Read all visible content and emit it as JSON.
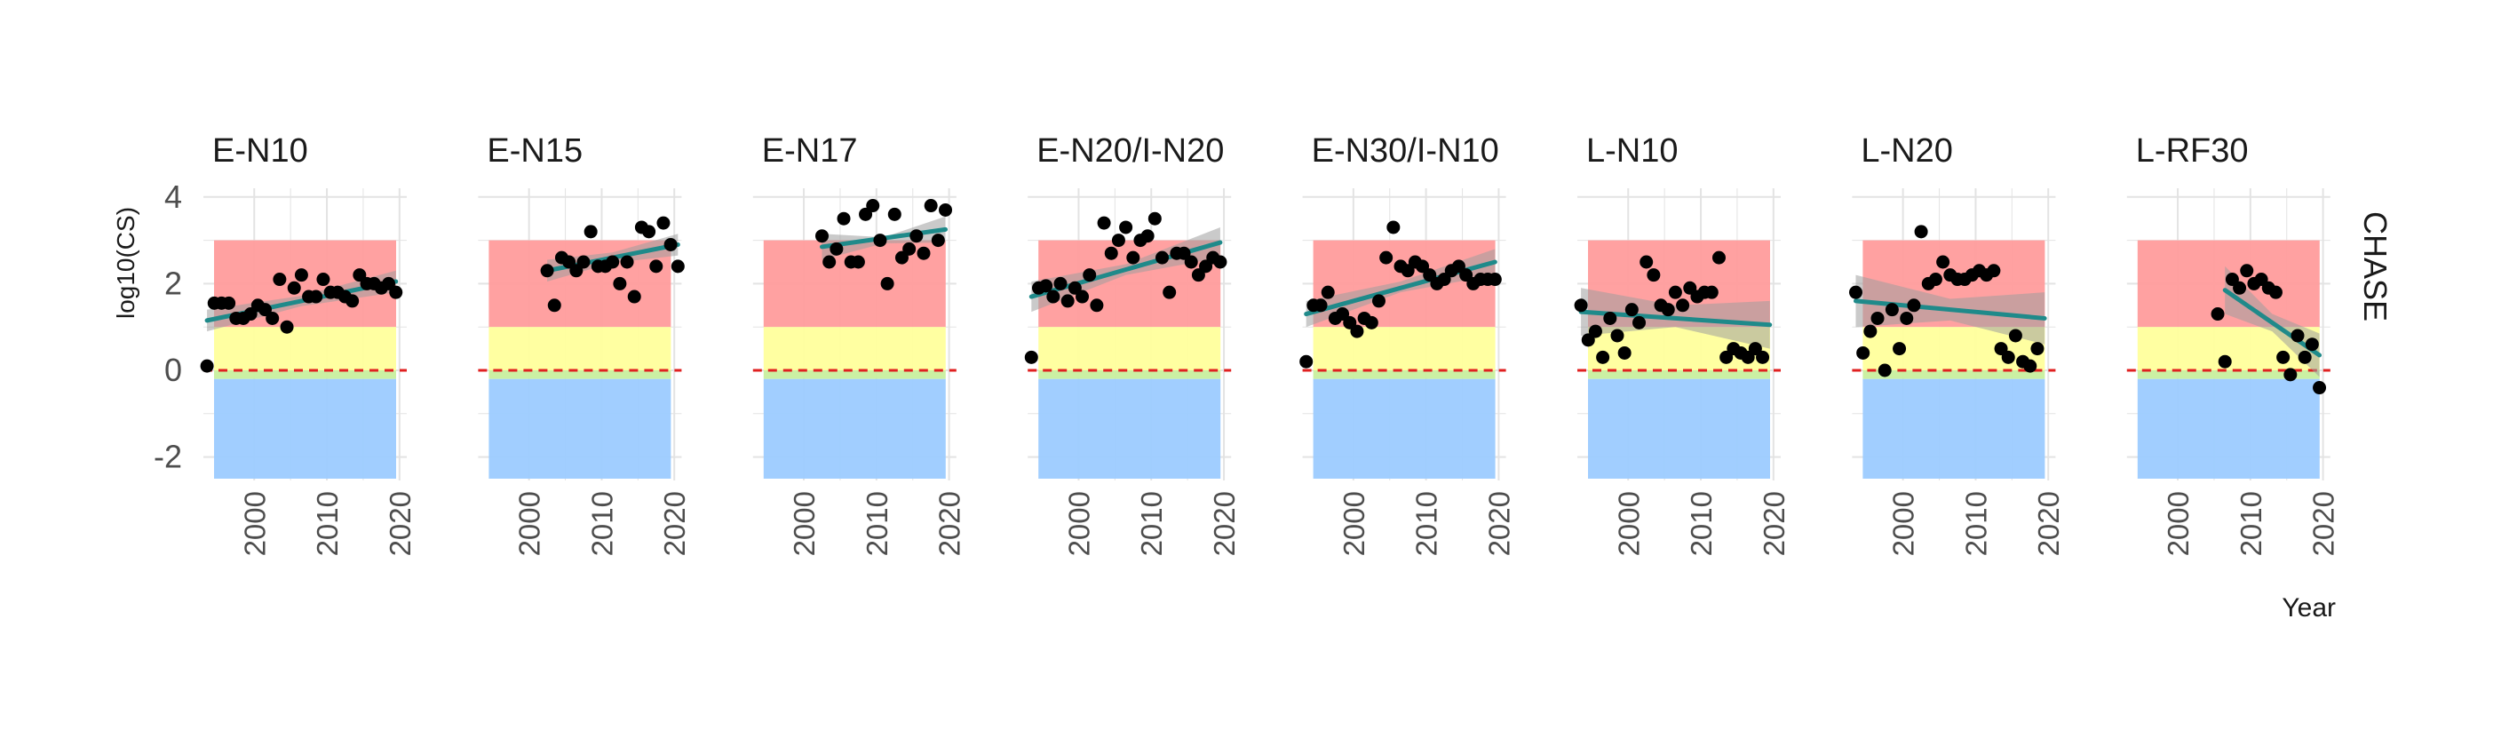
{
  "chart_data": {
    "type": "scatter",
    "facet_label": "CHASE",
    "xlabel": "Year",
    "ylabel": "log10(CS)",
    "xlim": [
      1993,
      2021
    ],
    "ylim": [
      -2.6,
      4.2
    ],
    "x_ticks": [
      "2000",
      "2010",
      "2020"
    ],
    "y_ticks": [
      "-2",
      "0",
      "2",
      "4"
    ],
    "reference_line": 0,
    "background_bands": [
      {
        "from": 1,
        "to": 3,
        "color": "#ff9c9c"
      },
      {
        "from": 0,
        "to": 1,
        "color": "#ffff9c"
      },
      {
        "from": -0.2,
        "to": 0,
        "color": "#c8ef9e"
      },
      {
        "from": -2.5,
        "to": -0.2,
        "color": "#9ccbff"
      }
    ],
    "colors": {
      "points": "#000000",
      "trend": "#1f8a8a",
      "ribbon": "#9e9e9e",
      "reference": "#e02020",
      "grid": "#e3e3e3"
    },
    "panels": [
      {
        "title": "E-N10",
        "points": [
          [
            1993.5,
            0.1
          ],
          [
            1994.5,
            1.55
          ],
          [
            1995.5,
            1.55
          ],
          [
            1996.5,
            1.55
          ],
          [
            1997.5,
            1.2
          ],
          [
            1998.5,
            1.2
          ],
          [
            1999.5,
            1.3
          ],
          [
            2000.5,
            1.5
          ],
          [
            2001.5,
            1.4
          ],
          [
            2002.5,
            1.2
          ],
          [
            2003.5,
            2.1
          ],
          [
            2004.5,
            1.0
          ],
          [
            2005.5,
            1.9
          ],
          [
            2006.5,
            2.2
          ],
          [
            2007.5,
            1.7
          ],
          [
            2008.5,
            1.7
          ],
          [
            2009.5,
            2.1
          ],
          [
            2010.5,
            1.8
          ],
          [
            2011.5,
            1.8
          ],
          [
            2012.5,
            1.7
          ],
          [
            2013.5,
            1.6
          ],
          [
            2014.5,
            2.2
          ],
          [
            2015.5,
            2.0
          ],
          [
            2016.5,
            2.0
          ],
          [
            2017.5,
            1.9
          ],
          [
            2018.5,
            2.0
          ],
          [
            2019.5,
            1.8
          ]
        ],
        "trend": [
          [
            1993.5,
            1.15
          ],
          [
            2019.5,
            2.05
          ]
        ],
        "ribbon_upper": [
          [
            1993.5,
            1.4
          ],
          [
            2006.5,
            1.72
          ],
          [
            2019.5,
            2.3
          ]
        ],
        "ribbon_lower": [
          [
            1993.5,
            0.9
          ],
          [
            2006.5,
            1.48
          ],
          [
            2019.5,
            1.8
          ]
        ]
      },
      {
        "title": "E-N15",
        "points": [
          [
            2002.5,
            2.3
          ],
          [
            2003.5,
            1.5
          ],
          [
            2004.5,
            2.6
          ],
          [
            2005.5,
            2.5
          ],
          [
            2006.5,
            2.3
          ],
          [
            2007.5,
            2.5
          ],
          [
            2008.5,
            3.2
          ],
          [
            2009.5,
            2.4
          ],
          [
            2010.5,
            2.4
          ],
          [
            2011.5,
            2.5
          ],
          [
            2012.5,
            2.0
          ],
          [
            2013.5,
            2.5
          ],
          [
            2014.5,
            1.7
          ],
          [
            2015.5,
            3.3
          ],
          [
            2016.5,
            3.2
          ],
          [
            2017.5,
            2.4
          ],
          [
            2018.5,
            3.4
          ],
          [
            2019.5,
            2.9
          ],
          [
            2020.5,
            2.4
          ]
        ],
        "trend": [
          [
            2002.5,
            2.3
          ],
          [
            2020.5,
            2.9
          ]
        ],
        "ribbon_upper": [
          [
            2002.5,
            2.55
          ],
          [
            2011.5,
            2.72
          ],
          [
            2020.5,
            3.15
          ]
        ],
        "ribbon_lower": [
          [
            2002.5,
            2.05
          ],
          [
            2011.5,
            2.48
          ],
          [
            2020.5,
            2.65
          ]
        ]
      },
      {
        "title": "E-N17",
        "points": [
          [
            2002.5,
            3.1
          ],
          [
            2003.5,
            2.5
          ],
          [
            2004.5,
            2.8
          ],
          [
            2005.5,
            3.5
          ],
          [
            2006.5,
            2.5
          ],
          [
            2007.5,
            2.5
          ],
          [
            2008.5,
            3.6
          ],
          [
            2009.5,
            3.8
          ],
          [
            2010.5,
            3.0
          ],
          [
            2011.5,
            2.0
          ],
          [
            2012.5,
            3.6
          ],
          [
            2013.5,
            2.6
          ],
          [
            2014.5,
            2.8
          ],
          [
            2015.5,
            3.1
          ],
          [
            2016.5,
            2.7
          ],
          [
            2017.5,
            3.8
          ],
          [
            2018.5,
            3.0
          ],
          [
            2019.5,
            3.7
          ]
        ],
        "trend": [
          [
            2002.5,
            2.85
          ],
          [
            2019.5,
            3.25
          ]
        ],
        "ribbon_upper": [
          [
            2002.5,
            3.15
          ],
          [
            2011,
            3.07
          ],
          [
            2019.5,
            3.55
          ]
        ],
        "ribbon_lower": [
          [
            2002.5,
            2.55
          ],
          [
            2011,
            2.93
          ],
          [
            2019.5,
            2.95
          ]
        ]
      },
      {
        "title": "E-N20/I-N20",
        "points": [
          [
            1993.5,
            0.3
          ],
          [
            1994.5,
            1.9
          ],
          [
            1995.5,
            1.95
          ],
          [
            1996.5,
            1.7
          ],
          [
            1997.5,
            2.0
          ],
          [
            1998.5,
            1.6
          ],
          [
            1999.5,
            1.9
          ],
          [
            2000.5,
            1.7
          ],
          [
            2001.5,
            2.2
          ],
          [
            2002.5,
            1.5
          ],
          [
            2003.5,
            3.4
          ],
          [
            2004.5,
            2.7
          ],
          [
            2005.5,
            3.0
          ],
          [
            2006.5,
            3.3
          ],
          [
            2007.5,
            2.6
          ],
          [
            2008.5,
            3.0
          ],
          [
            2009.5,
            3.1
          ],
          [
            2010.5,
            3.5
          ],
          [
            2011.5,
            2.6
          ],
          [
            2012.5,
            1.8
          ],
          [
            2013.5,
            2.7
          ],
          [
            2014.5,
            2.7
          ],
          [
            2015.5,
            2.5
          ],
          [
            2016.5,
            2.2
          ],
          [
            2017.5,
            2.4
          ],
          [
            2018.5,
            2.6
          ],
          [
            2019.5,
            2.5
          ]
        ],
        "trend": [
          [
            1993.5,
            1.7
          ],
          [
            2019.5,
            2.95
          ]
        ],
        "ribbon_upper": [
          [
            1993.5,
            2.05
          ],
          [
            2006.5,
            2.45
          ],
          [
            2019.5,
            3.3
          ]
        ],
        "ribbon_lower": [
          [
            1993.5,
            1.35
          ],
          [
            2006.5,
            2.2
          ],
          [
            2019.5,
            2.6
          ]
        ]
      },
      {
        "title": "E-N30/I-N10",
        "points": [
          [
            1993.5,
            0.2
          ],
          [
            1994.5,
            1.5
          ],
          [
            1995.5,
            1.5
          ],
          [
            1996.5,
            1.8
          ],
          [
            1997.5,
            1.2
          ],
          [
            1998.5,
            1.3
          ],
          [
            1999.5,
            1.1
          ],
          [
            2000.5,
            0.9
          ],
          [
            2001.5,
            1.2
          ],
          [
            2002.5,
            1.1
          ],
          [
            2003.5,
            1.6
          ],
          [
            2004.5,
            2.6
          ],
          [
            2005.5,
            3.3
          ],
          [
            2006.5,
            2.4
          ],
          [
            2007.5,
            2.3
          ],
          [
            2008.5,
            2.5
          ],
          [
            2009.5,
            2.4
          ],
          [
            2010.5,
            2.2
          ],
          [
            2011.5,
            2.0
          ],
          [
            2012.5,
            2.1
          ],
          [
            2013.5,
            2.3
          ],
          [
            2014.5,
            2.4
          ],
          [
            2015.5,
            2.2
          ],
          [
            2016.5,
            2.0
          ],
          [
            2017.5,
            2.1
          ],
          [
            2018.5,
            2.1
          ],
          [
            2019.5,
            2.1
          ]
        ],
        "trend": [
          [
            1993.5,
            1.3
          ],
          [
            2019.5,
            2.5
          ]
        ],
        "ribbon_upper": [
          [
            1993.5,
            1.6
          ],
          [
            2006.5,
            2.05
          ],
          [
            2019.5,
            2.8
          ]
        ],
        "ribbon_lower": [
          [
            1993.5,
            1.0
          ],
          [
            2006.5,
            1.8
          ],
          [
            2019.5,
            2.2
          ]
        ]
      },
      {
        "title": "L-N10",
        "points": [
          [
            1993.5,
            1.5
          ],
          [
            1994.5,
            0.7
          ],
          [
            1995.5,
            0.9
          ],
          [
            1996.5,
            0.3
          ],
          [
            1997.5,
            1.2
          ],
          [
            1998.5,
            0.8
          ],
          [
            1999.5,
            0.4
          ],
          [
            2000.5,
            1.4
          ],
          [
            2001.5,
            1.1
          ],
          [
            2002.5,
            2.5
          ],
          [
            2003.5,
            2.2
          ],
          [
            2004.5,
            1.5
          ],
          [
            2005.5,
            1.4
          ],
          [
            2006.5,
            1.8
          ],
          [
            2007.5,
            1.5
          ],
          [
            2008.5,
            1.9
          ],
          [
            2009.5,
            1.7
          ],
          [
            2010.5,
            1.8
          ],
          [
            2011.5,
            1.8
          ],
          [
            2012.5,
            2.6
          ],
          [
            2013.5,
            0.3
          ],
          [
            2014.5,
            0.5
          ],
          [
            2015.5,
            0.4
          ],
          [
            2016.5,
            0.3
          ],
          [
            2017.5,
            0.5
          ],
          [
            2018.5,
            0.3
          ]
        ],
        "trend": [
          [
            1993.5,
            1.35
          ],
          [
            2019.5,
            1.05
          ]
        ],
        "ribbon_upper": [
          [
            1993.5,
            1.9
          ],
          [
            2006.5,
            1.5
          ],
          [
            2019.5,
            1.6
          ]
        ],
        "ribbon_lower": [
          [
            1993.5,
            0.8
          ],
          [
            2006.5,
            1.0
          ],
          [
            2019.5,
            0.5
          ]
        ]
      },
      {
        "title": "L-N20",
        "points": [
          [
            1993.5,
            1.8
          ],
          [
            1994.5,
            0.4
          ],
          [
            1995.5,
            0.9
          ],
          [
            1996.5,
            1.2
          ],
          [
            1997.5,
            0.0
          ],
          [
            1998.5,
            1.4
          ],
          [
            1999.5,
            0.5
          ],
          [
            2000.5,
            1.2
          ],
          [
            2001.5,
            1.5
          ],
          [
            2002.5,
            3.2
          ],
          [
            2003.5,
            2.0
          ],
          [
            2004.5,
            2.1
          ],
          [
            2005.5,
            2.5
          ],
          [
            2006.5,
            2.2
          ],
          [
            2007.5,
            2.1
          ],
          [
            2008.5,
            2.1
          ],
          [
            2009.5,
            2.2
          ],
          [
            2010.5,
            2.3
          ],
          [
            2011.5,
            2.2
          ],
          [
            2012.5,
            2.3
          ],
          [
            2013.5,
            0.5
          ],
          [
            2014.5,
            0.3
          ],
          [
            2015.5,
            0.8
          ],
          [
            2016.5,
            0.2
          ],
          [
            2017.5,
            0.1
          ],
          [
            2018.5,
            0.5
          ]
        ],
        "trend": [
          [
            1993.5,
            1.6
          ],
          [
            2019.5,
            1.2
          ]
        ],
        "ribbon_upper": [
          [
            1993.5,
            2.2
          ],
          [
            2006.5,
            1.65
          ],
          [
            2019.5,
            1.8
          ]
        ],
        "ribbon_lower": [
          [
            1993.5,
            1.0
          ],
          [
            2006.5,
            1.15
          ],
          [
            2019.5,
            0.6
          ]
        ]
      },
      {
        "title": "L-RF30",
        "points": [
          [
            2005.5,
            1.3
          ],
          [
            2006.5,
            0.2
          ],
          [
            2007.5,
            2.1
          ],
          [
            2008.5,
            1.9
          ],
          [
            2009.5,
            2.3
          ],
          [
            2010.5,
            2.0
          ],
          [
            2011.5,
            2.1
          ],
          [
            2012.5,
            1.9
          ],
          [
            2013.5,
            1.8
          ],
          [
            2014.5,
            0.3
          ],
          [
            2015.5,
            -0.1
          ],
          [
            2016.5,
            0.8
          ],
          [
            2017.5,
            0.3
          ],
          [
            2018.5,
            0.6
          ],
          [
            2019.5,
            -0.4
          ]
        ],
        "trend": [
          [
            2006.5,
            1.85
          ],
          [
            2019.5,
            0.35
          ]
        ],
        "ribbon_upper": [
          [
            2006.5,
            2.4
          ],
          [
            2013,
            1.3
          ],
          [
            2019.5,
            0.85
          ]
        ],
        "ribbon_lower": [
          [
            2006.5,
            1.3
          ],
          [
            2013,
            0.9
          ],
          [
            2019.5,
            -0.15
          ]
        ]
      }
    ]
  }
}
